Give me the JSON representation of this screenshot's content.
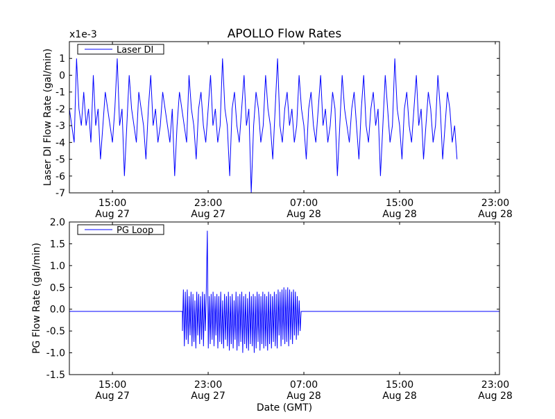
{
  "chart_data": [
    {
      "type": "line",
      "title": "APOLLO Flow Rates",
      "ylabel": "Laser DI Flow Rate (gal/min)",
      "xlabel": "",
      "scale_label": "x1e-3",
      "ylim": [
        -7,
        2
      ],
      "yticks": [
        1,
        0,
        -1,
        -2,
        -3,
        -4,
        -5,
        -6,
        -7
      ],
      "ytick_labels": [
        "1",
        "0",
        "-1",
        "-2",
        "-3",
        "-4",
        "-5",
        "-6",
        "-7"
      ],
      "xlim_hours_from_aug27": [
        11.4,
        47.35
      ],
      "xticks_hours": [
        15,
        23,
        31,
        39,
        47
      ],
      "xtick_labels": [
        [
          "15:00",
          "Aug 27"
        ],
        [
          "23:00",
          "Aug 27"
        ],
        [
          "07:00",
          "Aug 28"
        ],
        [
          "15:00",
          "Aug 28"
        ],
        [
          "23:00",
          "Aug 28"
        ]
      ],
      "legend": {
        "label": "Laser DI",
        "placement": "top-left"
      },
      "series": [
        {
          "name": "Laser DI",
          "color": "#0000ff",
          "x_start": 11.4,
          "x_step": 0.2,
          "values": [
            -2,
            -3,
            -4,
            1,
            -2,
            -3,
            -1,
            -3,
            -2,
            -4,
            0,
            -3,
            -2,
            -5,
            -3,
            -1,
            -2,
            -3,
            -4,
            -2,
            1,
            -3,
            -2,
            -6,
            -3,
            0,
            -2,
            -3,
            -4,
            -1,
            -2,
            -3,
            -5,
            -2,
            0,
            -3,
            -2,
            -4,
            -3,
            -1,
            -2,
            -3,
            -4,
            -2,
            -6,
            -3,
            -1,
            -2,
            -3,
            -4,
            0,
            -2,
            -3,
            -5,
            -2,
            -1,
            -3,
            -4,
            -2,
            0,
            -3,
            -2,
            -4,
            -3,
            1,
            -2,
            -3,
            -6,
            -2,
            -1,
            -3,
            -4,
            -2,
            0,
            -3,
            -2,
            -7,
            -3,
            -1,
            -2,
            -4,
            -3,
            0,
            -2,
            -3,
            -5,
            -2,
            1,
            -3,
            -4,
            -2,
            -1,
            -3,
            -2,
            -4,
            -3,
            0,
            -2,
            -3,
            -5,
            -2,
            -1,
            -3,
            -4,
            -2,
            0,
            -3,
            -2,
            -4,
            -3,
            -1,
            -2,
            -6,
            -3,
            0,
            -2,
            -3,
            -4,
            -2,
            -1,
            -3,
            -5,
            -2,
            0,
            -3,
            -4,
            -2,
            -1,
            -3,
            -2,
            -6,
            -3,
            0,
            -2,
            -4,
            -3,
            1,
            -2,
            -3,
            -5,
            -2,
            -1,
            -3,
            -4,
            -2,
            0,
            -3,
            -2,
            -5,
            -3,
            -1,
            -2,
            -4,
            -3,
            0,
            -2,
            -5,
            -3,
            -1,
            -2,
            -4,
            -3,
            -5
          ]
        }
      ]
    },
    {
      "type": "line",
      "ylabel": "PG Flow Rate (gal/min)",
      "xlabel": "Date (GMT)",
      "ylim": [
        -1.5,
        2.0
      ],
      "yticks": [
        2.0,
        1.5,
        1.0,
        0.5,
        0.0,
        -0.5,
        -1.0,
        -1.5
      ],
      "ytick_labels": [
        "2.0",
        "1.5",
        "1.0",
        "0.5",
        "0.0",
        "-0.5",
        "-1.0",
        "-1.5"
      ],
      "xlim_hours_from_aug27": [
        11.4,
        47.35
      ],
      "xticks_hours": [
        15,
        23,
        31,
        39,
        47
      ],
      "xtick_labels": [
        [
          "15:00",
          "Aug 27"
        ],
        [
          "23:00",
          "Aug 27"
        ],
        [
          "07:00",
          "Aug 28"
        ],
        [
          "15:00",
          "Aug 28"
        ],
        [
          "23:00",
          "Aug 28"
        ]
      ],
      "legend": {
        "label": "PG Loop",
        "placement": "top-left"
      },
      "series": [
        {
          "name": "PG Loop",
          "color": "#0000ff",
          "flat_before": {
            "x": [
              11.4,
              20.85
            ],
            "y": -0.05
          },
          "x_start": 20.85,
          "x_step": 0.08,
          "values": [
            -0.5,
            0.45,
            -0.85,
            0.4,
            -0.7,
            0.45,
            -0.8,
            0.3,
            -0.6,
            0.4,
            -0.85,
            0.35,
            -0.75,
            0.2,
            -0.9,
            0.4,
            -0.6,
            0.35,
            -0.8,
            0.3,
            -0.7,
            0.4,
            -0.85,
            0.35,
            -0.5,
            0.5,
            1.8,
            -0.9,
            0.3,
            -0.8,
            0.35,
            -0.7,
            0.4,
            -0.85,
            0.3,
            -0.6,
            0.35,
            -0.9,
            0.3,
            -0.75,
            0.4,
            -0.8,
            0.2,
            -0.9,
            0.35,
            -0.7,
            0.3,
            -0.85,
            0.4,
            -0.95,
            0.3,
            -0.8,
            0.35,
            -0.9,
            0.2,
            -0.7,
            0.4,
            -0.95,
            0.3,
            -0.85,
            0.35,
            -0.75,
            0.4,
            -1.0,
            0.3,
            -0.8,
            0.35,
            -0.9,
            0.25,
            -0.95,
            0.4,
            -0.8,
            0.3,
            -0.85,
            0.35,
            -1.0,
            0.3,
            -0.9,
            0.4,
            -0.75,
            0.35,
            -0.95,
            0.3,
            -0.8,
            0.4,
            -0.9,
            0.35,
            -0.85,
            0.3,
            -0.95,
            0.4,
            -0.8,
            0.35,
            -0.9,
            0.3,
            -0.75,
            0.4,
            -0.85,
            0.35,
            -0.9,
            0.45,
            -0.6,
            0.4,
            -0.85,
            0.45,
            -0.7,
            0.5,
            -0.8,
            0.45,
            -0.75,
            0.5,
            -0.85,
            0.45,
            -0.7,
            0.4,
            -0.8,
            0.45,
            -0.6,
            0.4,
            -0.7,
            0.3,
            -0.6,
            0.2,
            -0.5
          ],
          "flat_after": {
            "x": [
              30.77,
              47.35
            ],
            "y": -0.05
          }
        }
      ]
    }
  ]
}
